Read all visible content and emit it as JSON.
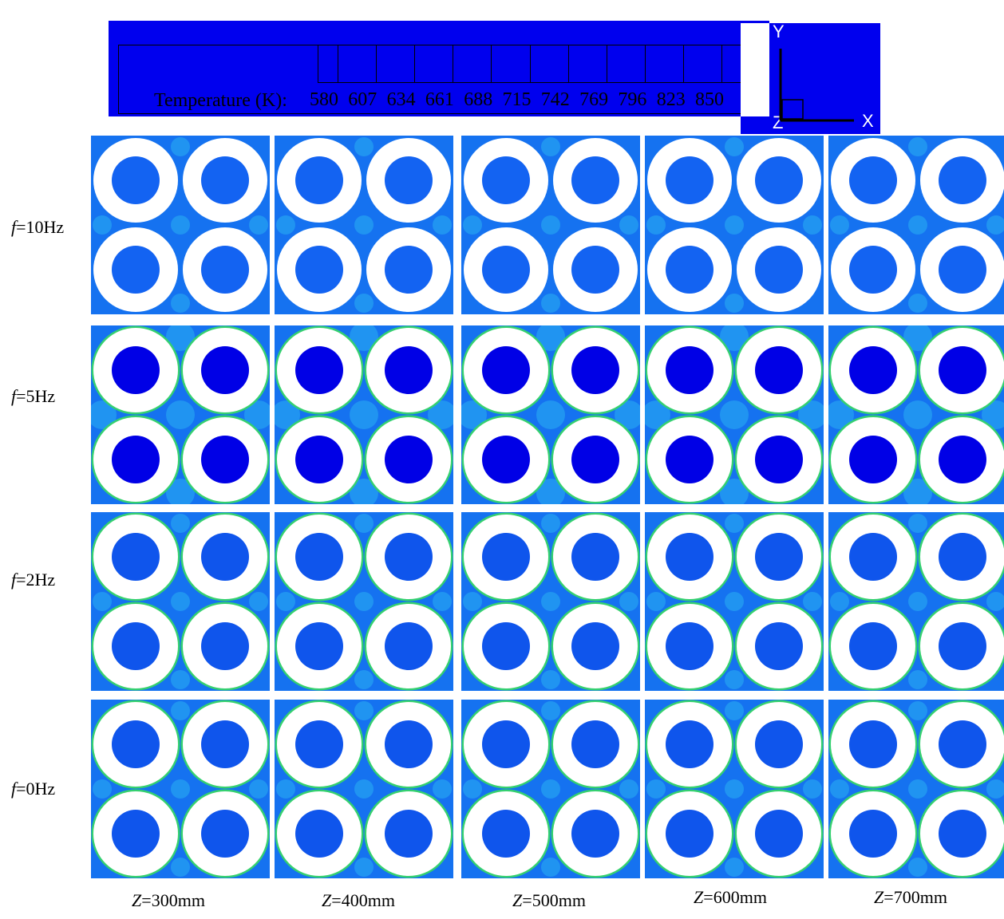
{
  "legend": {
    "label": "Temperature (K):",
    "ticks": [
      "580",
      "607",
      "634",
      "661",
      "688",
      "715",
      "742",
      "769",
      "796",
      "823",
      "850"
    ]
  },
  "axes": {
    "y": "Y",
    "x": "X",
    "z": "Z"
  },
  "rows": [
    {
      "label_italic": "f",
      "label_rest": "=10Hz",
      "core": "#1363f2",
      "hot": 0
    },
    {
      "label_italic": "f",
      "label_rest": "=5Hz",
      "core": "#0000e6",
      "hot": 1
    },
    {
      "label_italic": "f",
      "label_rest": "=2Hz",
      "core": "#0f55ec",
      "hot": 2
    },
    {
      "label_italic": "f",
      "label_rest": "=0Hz",
      "core": "#0f55ec",
      "hot": 2
    }
  ],
  "columns": [
    {
      "label_italic": "Z",
      "label_rest": "=300mm"
    },
    {
      "label_italic": "Z",
      "label_rest": "=400mm"
    },
    {
      "label_italic": "Z",
      "label_rest": "=500mm"
    },
    {
      "label_italic": "Z",
      "label_rest": "=600mm"
    },
    {
      "label_italic": "Z",
      "label_rest": "=700mm"
    }
  ],
  "colors": {
    "field": "#1572f0",
    "light_field": "#2ab0f2",
    "ring": "#ffffff",
    "hot_green": "#35d070",
    "hot_orange": "#e06a1a",
    "legend_bg": "#0000ee"
  }
}
